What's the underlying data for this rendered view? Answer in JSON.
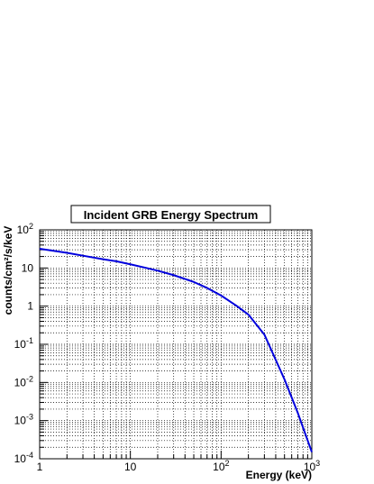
{
  "chart_data": {
    "type": "line",
    "title": "Incident GRB Energy Spectrum",
    "xlabel": "Energy (keV)",
    "ylabel": "counts/cm²/s/keV",
    "x_scale": "log",
    "y_scale": "log",
    "xlim": [
      1,
      1000
    ],
    "ylim": [
      0.0001,
      100
    ],
    "grid": true,
    "x_ticks": [
      {
        "value": 1,
        "mantissa": "1",
        "exp": ""
      },
      {
        "value": 10,
        "mantissa": "10",
        "exp": ""
      },
      {
        "value": 100,
        "mantissa": "10",
        "exp": "2"
      },
      {
        "value": 1000,
        "mantissa": "10",
        "exp": "3"
      }
    ],
    "y_ticks": [
      {
        "value": 0.0001,
        "mantissa": "10",
        "exp": "-4"
      },
      {
        "value": 0.001,
        "mantissa": "10",
        "exp": "-3"
      },
      {
        "value": 0.01,
        "mantissa": "10",
        "exp": "-2"
      },
      {
        "value": 0.1,
        "mantissa": "10",
        "exp": "-1"
      },
      {
        "value": 1,
        "mantissa": "1",
        "exp": ""
      },
      {
        "value": 10,
        "mantissa": "10",
        "exp": ""
      },
      {
        "value": 100,
        "mantissa": "10",
        "exp": "2"
      }
    ],
    "series": [
      {
        "color": "#0000dd",
        "x": [
          1,
          2,
          3,
          5,
          7,
          10,
          15,
          20,
          30,
          50,
          70,
          100,
          150,
          200,
          300,
          500,
          700,
          1000
        ],
        "y": [
          32,
          25,
          21,
          17,
          15,
          12.5,
          10,
          8.5,
          6.5,
          4.3,
          3.0,
          1.9,
          1.0,
          0.6,
          0.18,
          0.012,
          0.0016,
          0.00015
        ]
      }
    ]
  }
}
